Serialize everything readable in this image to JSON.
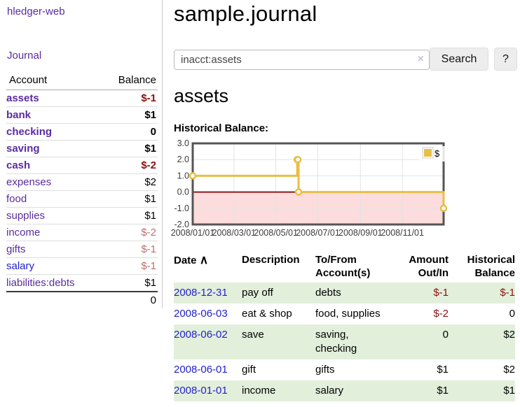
{
  "sidebar": {
    "brand": "hledger-web",
    "nav_journal": "Journal",
    "accounts_table": {
      "col_account": "Account",
      "col_balance": "Balance",
      "rows": [
        {
          "name": "assets",
          "balance": "$-1"
        },
        {
          "name": "bank",
          "balance": "$1"
        },
        {
          "name": "checking",
          "balance": "0"
        },
        {
          "name": "saving",
          "balance": "$1"
        },
        {
          "name": "cash",
          "balance": "$-2"
        },
        {
          "name": "expenses",
          "balance": "$2"
        },
        {
          "name": "food",
          "balance": "$1"
        },
        {
          "name": "supplies",
          "balance": "$1"
        },
        {
          "name": "income",
          "balance": "$-2"
        },
        {
          "name": "gifts",
          "balance": "$-1"
        },
        {
          "name": "salary",
          "balance": "$-1"
        },
        {
          "name": "liabilities:debts",
          "balance": "$1"
        }
      ],
      "total": "0"
    }
  },
  "header": {
    "title": "sample.journal"
  },
  "search": {
    "query": "inacct:assets",
    "clear_icon": "×",
    "button_label": "Search",
    "help_label": "?"
  },
  "account_page": {
    "title": "assets",
    "chart_label": "Historical Balance:"
  },
  "chart_data": {
    "type": "line",
    "title": "Historical Balance",
    "step": true,
    "series": [
      {
        "name": "$",
        "points": [
          [
            "2008-01-01",
            1
          ],
          [
            "2008-06-01",
            2
          ],
          [
            "2008-06-02",
            2
          ],
          [
            "2008-06-03",
            0
          ],
          [
            "2008-12-31",
            -1
          ]
        ]
      }
    ],
    "x_range": [
      "2008-01-01",
      "2008-12-31"
    ],
    "x_ticks": [
      "2008/01/01",
      "2008/03/01",
      "2008/05/01",
      "2008/07/01",
      "2008/09/01",
      "2008/11/01"
    ],
    "y_ticks": [
      3.0,
      2.0,
      1.0,
      0.0,
      -1.0,
      -2.0
    ],
    "ylim": [
      -2,
      3
    ],
    "grid": true,
    "legend": {
      "label": "$",
      "position": "top-right"
    },
    "line_color": "#e8bf45",
    "grid_color": "#e3e3e3",
    "border_color": "#545454",
    "zero_line_color": "#8b1a1a",
    "negative_region_color": "#fcdcdc",
    "axis_text_color": "#3c3c3c"
  },
  "register": {
    "columns": {
      "date": "Date",
      "date_sort_icon": "∧",
      "description": "Description",
      "accounts": "To/From Account(s)",
      "amount": "Amount Out/In",
      "balance": "Historical Balance"
    },
    "rows": [
      {
        "date": "2008-12-31",
        "description": "pay off",
        "accounts": "debts",
        "amount": "$-1",
        "balance": "$-1"
      },
      {
        "date": "2008-06-03",
        "description": "eat & shop",
        "accounts": "food, supplies",
        "amount": "$-2",
        "balance": "0"
      },
      {
        "date": "2008-06-02",
        "description": "save",
        "accounts": "saving, checking",
        "amount": "0",
        "balance": "$2"
      },
      {
        "date": "2008-06-01",
        "description": "gift",
        "accounts": "gifts",
        "amount": "$1",
        "balance": "$2"
      },
      {
        "date": "2008-01-01",
        "description": "income",
        "accounts": "salary",
        "amount": "$1",
        "balance": "$1"
      }
    ]
  }
}
